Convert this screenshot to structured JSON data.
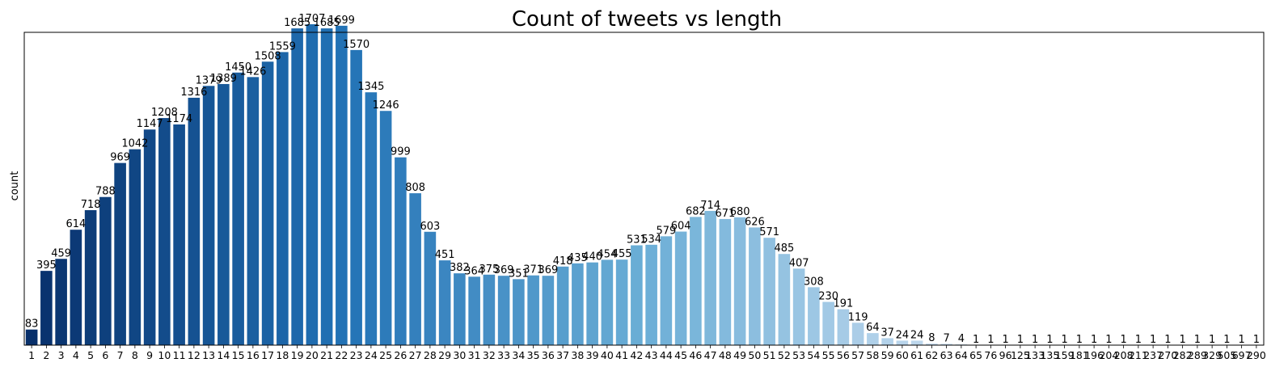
{
  "chart_data": {
    "type": "bar",
    "title": "Count of tweets vs length",
    "xlabel": "",
    "ylabel": "count",
    "ylim": [
      0,
      1707
    ],
    "grid": false,
    "legend": "none",
    "palette": [
      "#08306b",
      "#2171b5",
      "#6baed6",
      "#c6dbef",
      "#e6f0f9"
    ],
    "categories": [
      "1",
      "2",
      "3",
      "4",
      "5",
      "6",
      "7",
      "8",
      "9",
      "10",
      "11",
      "12",
      "13",
      "14",
      "15",
      "16",
      "17",
      "18",
      "19",
      "20",
      "21",
      "22",
      "23",
      "24",
      "25",
      "26",
      "27",
      "28",
      "29",
      "30",
      "31",
      "32",
      "33",
      "34",
      "35",
      "36",
      "37",
      "38",
      "39",
      "40",
      "41",
      "42",
      "43",
      "44",
      "45",
      "46",
      "47",
      "48",
      "49",
      "50",
      "51",
      "52",
      "53",
      "54",
      "55",
      "56",
      "57",
      "58",
      "59",
      "60",
      "61",
      "62",
      "63",
      "64",
      "65",
      "76",
      "96",
      "125",
      "133",
      "135",
      "159",
      "181",
      "196",
      "204",
      "208",
      "211",
      "237",
      "270",
      "282",
      "289",
      "329",
      "505",
      "697",
      "290"
    ],
    "values": [
      83,
      395,
      459,
      614,
      718,
      788,
      969,
      1042,
      1147,
      1208,
      1174,
      1316,
      1379,
      1389,
      1450,
      1426,
      1508,
      1559,
      1685,
      1707,
      1685,
      1699,
      1570,
      1345,
      1246,
      999,
      808,
      603,
      451,
      382,
      364,
      375,
      369,
      351,
      371,
      369,
      418,
      435,
      440,
      454,
      455,
      531,
      534,
      579,
      604,
      682,
      714,
      671,
      680,
      626,
      571,
      485,
      407,
      308,
      230,
      191,
      119,
      64,
      37,
      24,
      24,
      8,
      7,
      4,
      1,
      1,
      1,
      1,
      1,
      1,
      1,
      1,
      1,
      1,
      1,
      1,
      1,
      1,
      1,
      1,
      1,
      1,
      1,
      1
    ]
  }
}
